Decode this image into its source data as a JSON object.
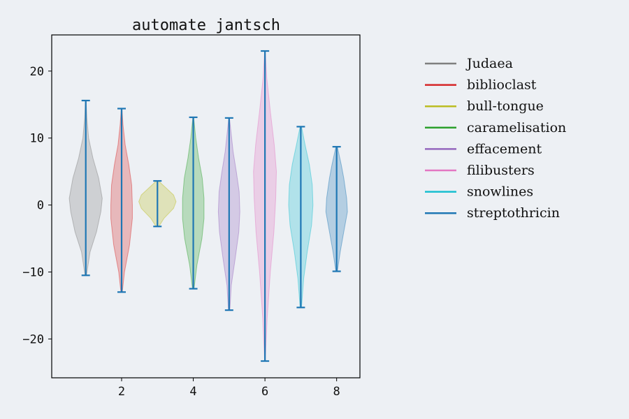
{
  "chart_data": {
    "type": "violin",
    "title": "automate jantsch",
    "xlabel": "",
    "ylabel": "",
    "xlim": [
      0.05,
      8.65
    ],
    "ylim": [
      -25.8,
      25.4
    ],
    "xticks": [
      2,
      4,
      6,
      8
    ],
    "yticks": [
      -20,
      -10,
      0,
      10,
      20
    ],
    "legend_position": "outside-right",
    "series": [
      {
        "name": "Judaea",
        "color": "#7f7f7f",
        "position": 1,
        "min": -10.5,
        "max": 15.6,
        "profile": [
          [
            -10.5,
            0.02
          ],
          [
            -7,
            0.12
          ],
          [
            -4,
            0.3
          ],
          [
            -1,
            0.42
          ],
          [
            1,
            0.46
          ],
          [
            4,
            0.36
          ],
          [
            7,
            0.2
          ],
          [
            10,
            0.08
          ],
          [
            13,
            0.03
          ],
          [
            15.6,
            0.01
          ]
        ]
      },
      {
        "name": "biblioclast",
        "color": "#d62728",
        "position": 2,
        "min": -13.0,
        "max": 14.4,
        "profile": [
          [
            -13,
            0.02
          ],
          [
            -10,
            0.08
          ],
          [
            -6,
            0.22
          ],
          [
            -2,
            0.3
          ],
          [
            0,
            0.3
          ],
          [
            3,
            0.28
          ],
          [
            6,
            0.2
          ],
          [
            9,
            0.1
          ],
          [
            12,
            0.04
          ],
          [
            14.4,
            0.01
          ]
        ]
      },
      {
        "name": "bull-tongue",
        "color": "#bcbd22",
        "position": 3,
        "min": -3.2,
        "max": 3.6,
        "profile": [
          [
            -3.2,
            0.04
          ],
          [
            -2,
            0.18
          ],
          [
            -0.5,
            0.45
          ],
          [
            0.5,
            0.52
          ],
          [
            1.5,
            0.45
          ],
          [
            2.5,
            0.25
          ],
          [
            3.6,
            0.03
          ]
        ]
      },
      {
        "name": "caramelisation",
        "color": "#2ca02c",
        "position": 4,
        "min": -12.5,
        "max": 13.1,
        "profile": [
          [
            -12.5,
            0.02
          ],
          [
            -9,
            0.1
          ],
          [
            -5,
            0.24
          ],
          [
            -2,
            0.3
          ],
          [
            1,
            0.3
          ],
          [
            4,
            0.25
          ],
          [
            7,
            0.15
          ],
          [
            10,
            0.07
          ],
          [
            13.1,
            0.01
          ]
        ]
      },
      {
        "name": "effacement",
        "color": "#9467bd",
        "position": 5,
        "min": -15.7,
        "max": 13.0,
        "profile": [
          [
            -15.7,
            0.02
          ],
          [
            -12,
            0.06
          ],
          [
            -8,
            0.17
          ],
          [
            -4,
            0.27
          ],
          [
            -1,
            0.3
          ],
          [
            2,
            0.28
          ],
          [
            5,
            0.2
          ],
          [
            8,
            0.11
          ],
          [
            11,
            0.05
          ],
          [
            13,
            0.01
          ]
        ]
      },
      {
        "name": "filibusters",
        "color": "#e377c2",
        "position": 6,
        "min": -23.3,
        "max": 23.0,
        "profile": [
          [
            -23.3,
            0.01
          ],
          [
            -17,
            0.06
          ],
          [
            -10,
            0.15
          ],
          [
            -4,
            0.25
          ],
          [
            1,
            0.3
          ],
          [
            5,
            0.32
          ],
          [
            9,
            0.26
          ],
          [
            14,
            0.15
          ],
          [
            19,
            0.05
          ],
          [
            23,
            0.01
          ]
        ]
      },
      {
        "name": "snowlines",
        "color": "#17becf",
        "position": 7,
        "min": -15.3,
        "max": 11.7,
        "profile": [
          [
            -15.3,
            0.02
          ],
          [
            -11,
            0.08
          ],
          [
            -7,
            0.18
          ],
          [
            -3,
            0.3
          ],
          [
            0,
            0.34
          ],
          [
            3,
            0.32
          ],
          [
            6,
            0.24
          ],
          [
            9,
            0.12
          ],
          [
            11.7,
            0.02
          ]
        ]
      },
      {
        "name": "streptothricin",
        "color": "#1f77b4",
        "position": 8,
        "min": -9.9,
        "max": 8.7,
        "profile": [
          [
            -9.9,
            0.02
          ],
          [
            -7,
            0.1
          ],
          [
            -4,
            0.2
          ],
          [
            -1,
            0.3
          ],
          [
            1,
            0.28
          ],
          [
            4,
            0.2
          ],
          [
            6,
            0.13
          ],
          [
            8.7,
            0.02
          ]
        ]
      }
    ],
    "whisker_color": "#1f77b4"
  }
}
